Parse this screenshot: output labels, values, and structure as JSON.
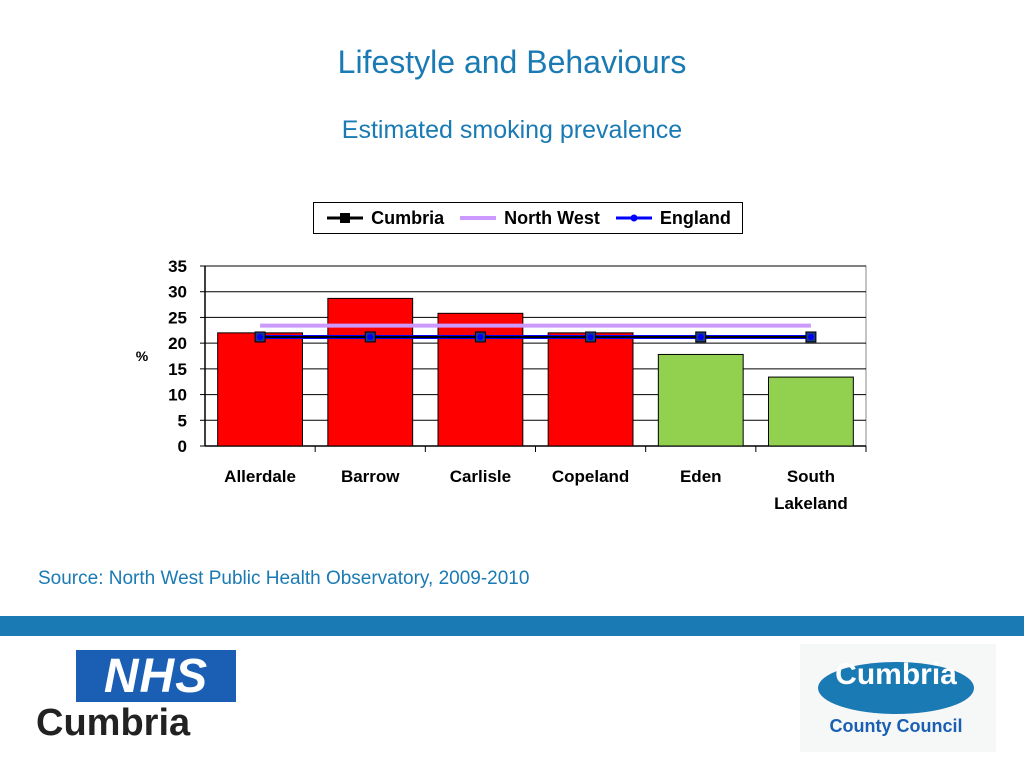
{
  "slide": {
    "title": "Lifestyle and Behaviours",
    "subtitle": "Estimated smoking prevalence",
    "source": "Source: North West Public Health Observatory, 2009-2010"
  },
  "logos": {
    "nhs_mark": "NHS",
    "nhs_org": "Cumbria",
    "council_name": "Cumbria",
    "council_sub": "County Council"
  },
  "colors": {
    "title_blue": "#1a7ab4",
    "bar_red": "#ff0000",
    "bar_green": "#92d050",
    "cumbria_line": "#000000",
    "northwest_line": "#cc99ff",
    "england_line": "#0000ff"
  },
  "chart_data": {
    "type": "bar",
    "categories": [
      "Allerdale",
      "Barrow",
      "Carlisle",
      "Copeland",
      "Eden",
      "South Lakeland"
    ],
    "values": [
      22,
      28.7,
      25.8,
      22,
      17.8,
      13.4
    ],
    "bar_colors": [
      "red",
      "red",
      "red",
      "red",
      "green",
      "green"
    ],
    "series": [
      {
        "name": "Cumbria",
        "values": [
          21.2,
          21.2,
          21.2,
          21.2,
          21.2,
          21.2
        ]
      },
      {
        "name": "North West",
        "values": [
          23.4,
          23.4,
          23.4,
          23.4,
          23.4,
          23.4
        ]
      },
      {
        "name": "England",
        "values": [
          21.2,
          21.2,
          21.2,
          21.2,
          21.2,
          21.2
        ]
      }
    ],
    "ylabel": "%",
    "xlabel": "",
    "ylim": [
      0,
      35
    ],
    "yticks": [
      0,
      5,
      10,
      15,
      20,
      25,
      30,
      35
    ],
    "grid": true,
    "legend_position": "top"
  }
}
